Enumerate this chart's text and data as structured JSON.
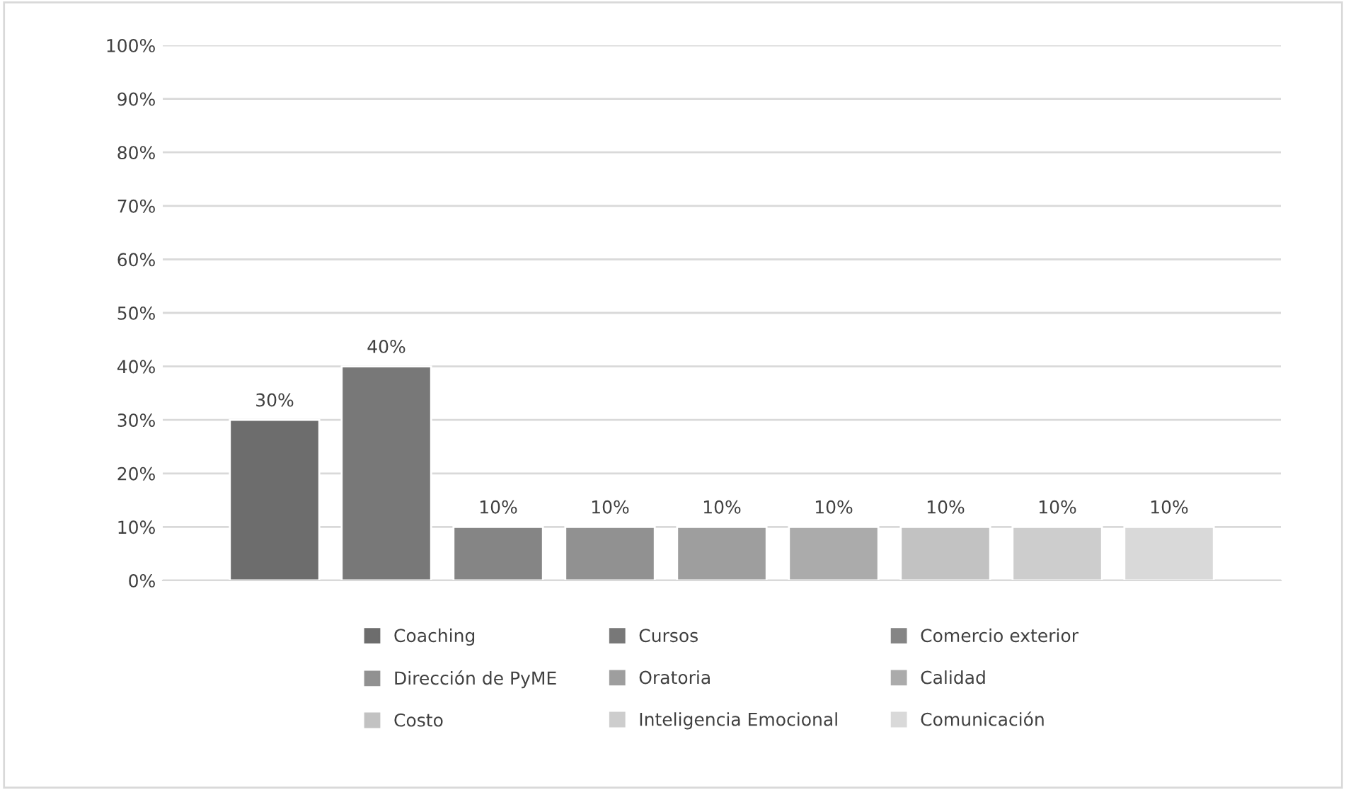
{
  "chart_data": {
    "type": "bar",
    "categories": [
      null
    ],
    "series": [
      {
        "name": "Coaching",
        "color": "#6d6d6d",
        "values": [
          30
        ],
        "value_labels": [
          "30%"
        ]
      },
      {
        "name": "Cursos",
        "color": "#787878",
        "values": [
          40
        ],
        "value_labels": [
          "40%"
        ]
      },
      {
        "name": "Comercio exterior",
        "color": "#858585",
        "values": [
          10
        ],
        "value_labels": [
          "10%"
        ]
      },
      {
        "name": "Dirección de PyME",
        "color": "#919191",
        "values": [
          10
        ],
        "value_labels": [
          "10%"
        ]
      },
      {
        "name": "Oratoria",
        "color": "#9e9e9e",
        "values": [
          10
        ],
        "value_labels": [
          "10%"
        ]
      },
      {
        "name": "Calidad",
        "color": "#ababab",
        "values": [
          10
        ],
        "value_labels": [
          "10%"
        ]
      },
      {
        "name": "Costo",
        "color": "#c2c2c2",
        "values": [
          10
        ],
        "value_labels": [
          "10%"
        ]
      },
      {
        "name": "Inteligencia Emocional",
        "color": "#cdcdcd",
        "values": [
          10
        ],
        "value_labels": [
          "10%"
        ]
      },
      {
        "name": "Comunicación",
        "color": "#d9d9d9",
        "values": [
          10
        ],
        "value_labels": [
          "10%"
        ]
      }
    ],
    "ylim": [
      0,
      100
    ],
    "yticks": [
      {
        "value": 0,
        "label": "0%"
      },
      {
        "value": 10,
        "label": "10%"
      },
      {
        "value": 20,
        "label": "20%"
      },
      {
        "value": 30,
        "label": "30%"
      },
      {
        "value": 40,
        "label": "40%"
      },
      {
        "value": 50,
        "label": "50%"
      },
      {
        "value": 60,
        "label": "60%"
      },
      {
        "value": 70,
        "label": "70%"
      },
      {
        "value": 80,
        "label": "80%"
      },
      {
        "value": 90,
        "label": "90%"
      },
      {
        "value": 100,
        "label": "100%"
      }
    ],
    "grid": "y",
    "legend": "bottom"
  }
}
